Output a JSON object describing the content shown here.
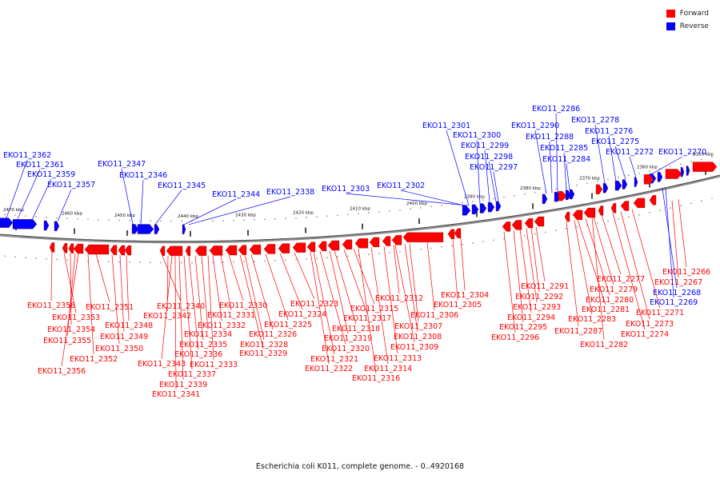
{
  "legend": {
    "forward_label": "Forward",
    "reverse_label": "Reverse",
    "forward_color": "#ff0000",
    "reverse_color": "#0000ff"
  },
  "caption": "Escherichia coli K011, complete genome. - 0..4920168",
  "scale_ticks": [
    "2470 kbp",
    "2460 kbp",
    "2450 kbp",
    "2440 kbp",
    "2430 kbp",
    "2420 kbp",
    "2410 kbp",
    "2400 kbp",
    "2390 kbp",
    "2380 kbp",
    "2370 kbp",
    "2360 kbp",
    "2350 kbp"
  ],
  "reverse_genes": [
    "EKO11_2362",
    "EKO11_2361",
    "EKO11_2359",
    "EKO11_2357",
    "EKO11_2347",
    "EKO11_2346",
    "EKO11_2345",
    "EKO11_2344",
    "EKO11_2338",
    "EKO11_2303",
    "EKO11_2302",
    "EKO11_2301",
    "EKO11_2300",
    "EKO11_2299",
    "EKO11_2298",
    "EKO11_2297",
    "EKO11_2290",
    "EKO11_2288",
    "EKO11_2286",
    "EKO11_2285",
    "EKO11_2284",
    "EKO11_2278",
    "EKO11_2276",
    "EKO11_2275",
    "EKO11_2272",
    "EKO11_2270"
  ],
  "forward_genes": [
    "EKO11_2358",
    "EKO11_2353",
    "EKO11_2354",
    "EKO11_2355",
    "EKO11_2356",
    "EKO11_2352",
    "EKO11_2351",
    "EKO11_2350",
    "EKO11_2349",
    "EKO11_2348",
    "EKO11_2340",
    "EKO11_2342",
    "EKO11_2343",
    "EKO11_2341",
    "EKO11_2339",
    "EKO11_2337",
    "EKO11_2336",
    "EKO11_2335",
    "EKO11_2334",
    "EKO11_2333",
    "EKO11_2332",
    "EKO11_2331",
    "EKO11_2330",
    "EKO11_2329",
    "EKO11_2328",
    "EKO11_2326",
    "EKO11_2325",
    "EKO11_2324",
    "EKO11_2323",
    "EKO11_2322",
    "EKO11_2321",
    "EKO11_2320",
    "EKO11_2319",
    "EKO11_2318",
    "EKO11_2317",
    "EKO11_2316",
    "EKO11_2315",
    "EKO11_2314",
    "EKO11_2313",
    "EKO11_2312",
    "EKO11_2309",
    "EKO11_2308",
    "EKO11_2307",
    "EKO11_2306",
    "EKO11_2305",
    "EKO11_2304",
    "EKO11_2296",
    "EKO11_2295",
    "EKO11_2294",
    "EKO11_2293",
    "EKO11_2292",
    "EKO11_2291",
    "EKO11_2287",
    "EKO11_2283",
    "EKO11_2282",
    "EKO11_2281",
    "EKO11_2280",
    "EKO11_2279",
    "EKO11_2277",
    "EKO11_2274",
    "EKO11_2273",
    "EKO11_2271",
    "EKO11_2266",
    "EKO11_2267"
  ],
  "blue_labelled_lower": [
    "EKO11_2268",
    "EKO11_2269"
  ]
}
